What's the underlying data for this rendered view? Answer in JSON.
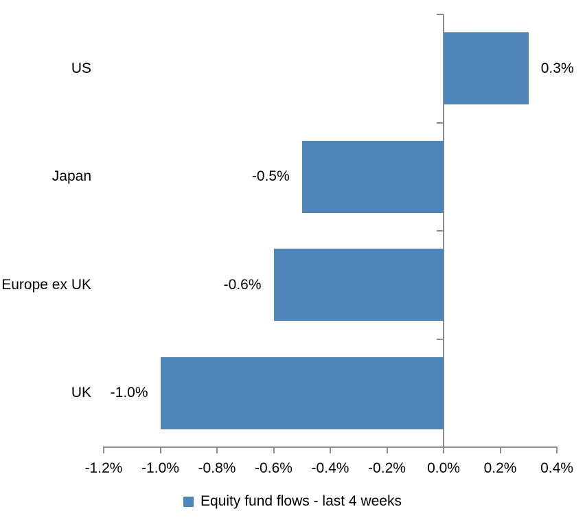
{
  "chart_data": {
    "type": "bar",
    "orientation": "horizontal",
    "title": "",
    "xlabel": "",
    "ylabel": "",
    "categories": [
      "US",
      "Japan",
      "Europe ex UK",
      "UK"
    ],
    "values": [
      0.3,
      -0.5,
      -0.6,
      -1.0
    ],
    "data_labels": [
      "0.3%",
      "-0.5%",
      "-0.6%",
      "-1.0%"
    ],
    "series_name": "Equity fund flows - last 4 weeks",
    "xlim": [
      -1.2,
      0.4
    ],
    "x_tick_values": [
      -1.2,
      -1.0,
      -0.8,
      -0.6,
      -0.4,
      -0.2,
      0.0,
      0.2,
      0.4
    ],
    "x_tick_labels": [
      "-1.2%",
      "-1.0%",
      "-0.8%",
      "-0.6%",
      "-0.4%",
      "-0.2%",
      "0.0%",
      "0.2%",
      "0.4%"
    ],
    "grid": false,
    "legend_position": "bottom",
    "bar_color": "#4E86BC",
    "axis_color": "#8C8C8C",
    "text_color": "#000000",
    "background_color": "#FFFFFF"
  },
  "legend": {
    "label": "Equity fund flows - last 4 weeks",
    "marker_color": "#4E86BC"
  }
}
